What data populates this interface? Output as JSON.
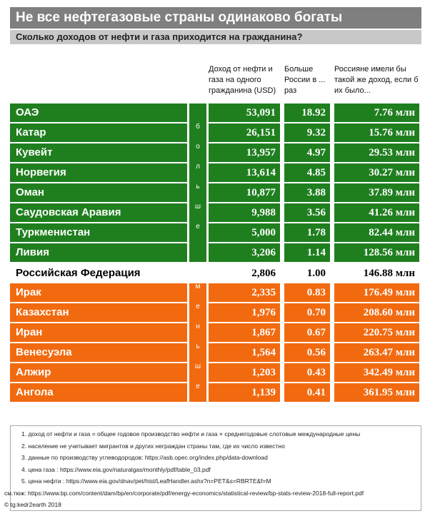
{
  "header": {
    "title": "Не все нефтегазовые страны одинаково богаты",
    "subtitle": "Сколько доходов от нефти и газа приходится на гражданина?"
  },
  "table": {
    "columns": [
      "Доход от нефти и газа на одного гражданина (USD)",
      "Больше России в ... раз",
      "Россияне имели бы такой же доход, если б их было..."
    ],
    "above": {
      "side_label": "больше",
      "color": "#1f7f1f",
      "rows": [
        {
          "name": "ОАЭ",
          "values": [
            "53,091",
            "18.92",
            "7.76 млн"
          ]
        },
        {
          "name": "Катар",
          "values": [
            "26,151",
            "9.32",
            "15.76 млн"
          ]
        },
        {
          "name": "Кувейт",
          "values": [
            "13,957",
            "4.97",
            "29.53 млн"
          ]
        },
        {
          "name": "Норвегия",
          "values": [
            "13,614",
            "4.85",
            "30.27 млн"
          ]
        },
        {
          "name": "Оман",
          "values": [
            "10,877",
            "3.88",
            "37.89 млн"
          ]
        },
        {
          "name": "Саудовская Аравия",
          "values": [
            "9,988",
            "3.56",
            "41.26 млн"
          ]
        },
        {
          "name": "Туркменистан",
          "values": [
            "5,000",
            "1.78",
            "82.44 млн"
          ]
        },
        {
          "name": "Ливия",
          "values": [
            "3,206",
            "1.14",
            "128.56 млн"
          ]
        }
      ]
    },
    "reference": {
      "name": "Российская Федерация",
      "values": [
        "2,806",
        "1.00",
        "146.88 млн"
      ]
    },
    "below": {
      "side_label": "меньше",
      "color": "#f26a10",
      "rows": [
        {
          "name": "Ирак",
          "values": [
            "2,335",
            "0.83",
            "176.49 млн"
          ]
        },
        {
          "name": "Казахстан",
          "values": [
            "1,976",
            "0.70",
            "208.60 млн"
          ]
        },
        {
          "name": "Иран",
          "values": [
            "1,867",
            "0.67",
            "220.75 млн"
          ]
        },
        {
          "name": "Венесуэла",
          "values": [
            "1,564",
            "0.56",
            "263.47 млн"
          ]
        },
        {
          "name": "Алжир",
          "values": [
            "1,203",
            "0.43",
            "342.49 млн"
          ]
        },
        {
          "name": "Ангола",
          "values": [
            "1,139",
            "0.41",
            "361.95 млн"
          ]
        }
      ]
    }
  },
  "footer": {
    "notes": [
      "1. доход от нефти и газа = общее годовое производство нефти и газа × среднегодовые слотовые международные цены",
      "2. население не учитывает мигрантов и других неграждан страны там, где их число известно",
      "3. данные по производству углеводородов: https://asb.opec.org/index.php/data-download",
      "4. цена газа : https://www.eia.gov/naturalgas/monthly/pdf/table_03.pdf",
      "5. цена нефти : https://www.eia.gov/dnav/pet/hist/LeafHandler.ashx?n=PET&s=RBRTE&f=M",
      "см.тюж: https://www.bp.com/content/dam/bp/en/corporate/pdf/energy-economics/statistical-review/bp-stats-review-2018-full-report.pdf",
      "© tg:kedr2earth 2018"
    ]
  }
}
